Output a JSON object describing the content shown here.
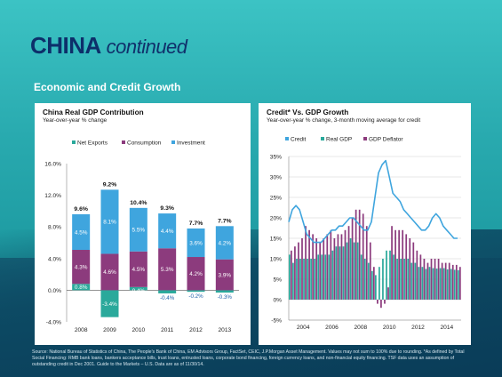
{
  "slide": {
    "title_main": "CHINA",
    "title_cont": "continued",
    "subtitle": "Economic and Credit Growth",
    "source": "Source: National Bureau of Statistics of China, The People's Bank of China, EM Advisors Group, FactSet, CEIC, J.P.Morgan Asset Management. Values may not sum to 100% due to rounding. *As defined by Total Social Financing: RMB bank loans, bankers acceptance bills, trust loans, entrusted loans, corporate bond financing, foreign currency loans, and non-financial equity financing. TSF data uses an assumption of outstanding credit in Dec 2001. Guide to the Markets – U.S. Data are as of 11/30/14."
  },
  "chart_data": [
    {
      "type": "bar",
      "title": "China Real GDP Contribution",
      "subtitle": "Year-over-year % change",
      "categories": [
        "2008",
        "2009",
        "2010",
        "2011",
        "2012",
        "2013"
      ],
      "series": [
        {
          "name": "Net Exports",
          "color": "#2aa99b",
          "values": [
            0.8,
            -3.4,
            0.4,
            -0.4,
            -0.2,
            -0.3
          ],
          "labels": [
            "0.8%",
            "-3.4%",
            "0.4%",
            "-0.4%",
            "-0.2%",
            "-0.3%"
          ]
        },
        {
          "name": "Consumption",
          "color": "#8c3b7d",
          "values": [
            4.3,
            4.6,
            4.5,
            5.3,
            4.2,
            3.9
          ],
          "labels": [
            "4.3%",
            "4.6%",
            "4.5%",
            "5.3%",
            "4.2%",
            "3.9%"
          ]
        },
        {
          "name": "Investment",
          "color": "#3fa5de",
          "values": [
            4.5,
            8.1,
            5.5,
            4.4,
            3.6,
            4.2
          ],
          "labels": [
            "4.5%",
            "8.1%",
            "5.5%",
            "4.4%",
            "3.6%",
            "4.2%"
          ]
        }
      ],
      "totals": [
        "9.6%",
        "9.2%",
        "10.4%",
        "9.3%",
        "7.7%",
        "7.7%"
      ],
      "yticks": [
        "16.0%",
        "12.0%",
        "8.0%",
        "4.0%",
        "0.0%",
        "-4.0%"
      ],
      "ylim": [
        -4,
        16
      ],
      "legend_position": "top",
      "grid": false
    },
    {
      "type": "line",
      "title": "Credit* Vs. GDP Growth",
      "subtitle": "Year-over-year % change, 3-month moving average for credit",
      "legend": [
        {
          "name": "Credit",
          "color": "#3fa5de"
        },
        {
          "name": "Real GDP",
          "color": "#2aa99b"
        },
        {
          "name": "GDP Deflator",
          "color": "#8c3b7d"
        }
      ],
      "yticks": [
        "35%",
        "30%",
        "25%",
        "20%",
        "15%",
        "10%",
        "5%",
        "0%",
        "-5%"
      ],
      "ylim": [
        -5,
        35
      ],
      "xticks": [
        "2004",
        "2006",
        "2008",
        "2010",
        "2012",
        "2014"
      ],
      "xlim": [
        2003,
        2015
      ],
      "grid": true,
      "credit": {
        "x": [
          2003.0,
          2003.25,
          2003.5,
          2003.75,
          2004.0,
          2004.25,
          2004.5,
          2004.75,
          2005.0,
          2005.25,
          2005.5,
          2005.75,
          2006.0,
          2006.25,
          2006.5,
          2006.75,
          2007.0,
          2007.25,
          2007.5,
          2007.75,
          2008.0,
          2008.25,
          2008.5,
          2008.75,
          2009.0,
          2009.25,
          2009.5,
          2009.75,
          2010.0,
          2010.25,
          2010.5,
          2010.75,
          2011.0,
          2011.25,
          2011.5,
          2011.75,
          2012.0,
          2012.25,
          2012.5,
          2012.75,
          2013.0,
          2013.25,
          2013.5,
          2013.75,
          2014.0,
          2014.25,
          2014.5,
          2014.75
        ],
        "values": [
          19,
          22,
          23,
          22,
          19,
          16,
          15,
          14,
          14,
          14,
          15,
          16,
          17,
          17,
          18,
          18,
          19,
          20,
          20,
          19,
          18,
          17,
          17,
          19,
          25,
          31,
          33,
          34,
          30,
          26,
          25,
          24,
          22,
          21,
          20,
          19,
          18,
          17,
          17,
          18,
          20,
          21,
          20,
          18,
          17,
          16,
          15,
          15
        ]
      },
      "bars": {
        "x": [
          2003.0,
          2003.25,
          2003.5,
          2003.75,
          2004.0,
          2004.25,
          2004.5,
          2004.75,
          2005.0,
          2005.25,
          2005.5,
          2005.75,
          2006.0,
          2006.25,
          2006.5,
          2006.75,
          2007.0,
          2007.25,
          2007.5,
          2007.75,
          2008.0,
          2008.25,
          2008.5,
          2008.75,
          2009.0,
          2009.25,
          2009.5,
          2009.75,
          2010.0,
          2010.25,
          2010.5,
          2010.75,
          2011.0,
          2011.25,
          2011.5,
          2011.75,
          2012.0,
          2012.25,
          2012.5,
          2012.75,
          2013.0,
          2013.25,
          2013.5,
          2013.75,
          2014.0,
          2014.25,
          2014.5,
          2014.75
        ],
        "real_gdp": [
          11,
          9,
          10,
          10,
          10,
          10,
          10,
          10,
          11,
          11,
          11,
          11,
          12,
          13,
          13,
          13,
          14,
          15,
          14,
          14,
          11,
          10,
          9,
          7,
          6,
          8,
          10,
          12,
          12,
          11,
          10,
          10,
          10,
          10,
          9,
          9,
          8,
          8,
          7.5,
          8,
          7.7,
          7.6,
          7.7,
          7.7,
          7.4,
          7.5,
          7.3,
          7.2
        ],
        "gdp_deflator": [
          12,
          13,
          14,
          15,
          18,
          17,
          16,
          15,
          14,
          15,
          16,
          17,
          15,
          16,
          16,
          17,
          18,
          20,
          22,
          22,
          21,
          18,
          14,
          8,
          -1,
          -2,
          -1,
          3,
          18,
          17,
          17,
          17,
          16,
          15,
          14,
          12,
          11,
          10,
          9,
          10,
          10,
          10,
          9,
          9,
          9,
          8.5,
          8.5,
          8
        ]
      }
    }
  ]
}
